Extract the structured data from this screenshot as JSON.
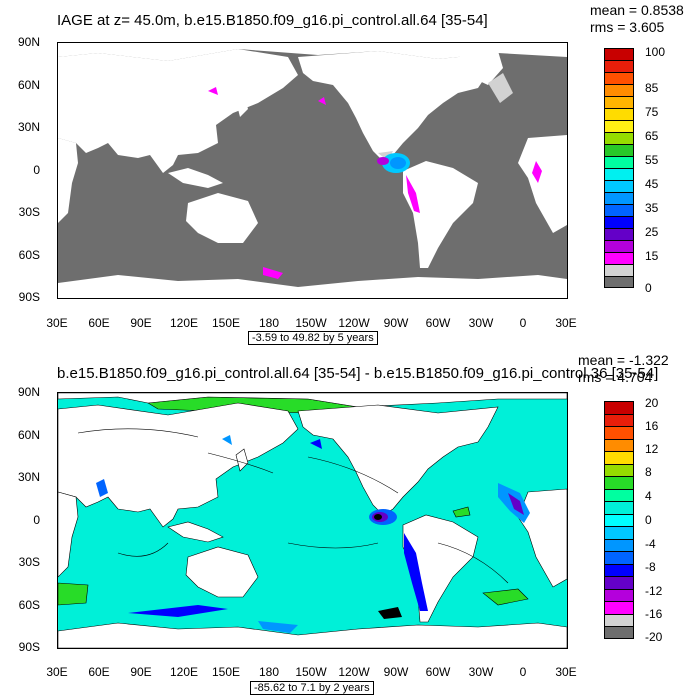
{
  "panel1": {
    "title": "IAGE at z=  45.0m, b.e15.B1850.f09_g16.pi_control.all.64 [35-54]",
    "mean": "mean = 0.8538",
    "rms": "rms = 3.605",
    "info": "-3.59 to 49.82 by 5 years",
    "ocean_color": "#6e6e6e",
    "land_color": "#ffffff",
    "colorbar_labels": [
      "100",
      "85",
      "75",
      "65",
      "55",
      "45",
      "35",
      "25",
      "15",
      "0"
    ],
    "colorbar_colors": [
      "#c80000",
      "#e81e0a",
      "#ff5000",
      "#ff8c00",
      "#ffb400",
      "#ffdc00",
      "#fff014",
      "#96dc00",
      "#28c828",
      "#00ffa0",
      "#00f0f0",
      "#00c8ff",
      "#0096ff",
      "#0064ff",
      "#0000ff",
      "#6400c8",
      "#b400dc",
      "#ff00ff",
      "#d2d2d2",
      "#6e6e6e"
    ]
  },
  "panel2": {
    "title": "b.e15.B1850.f09_g16.pi_control.all.64 [35-54] - b.e15.B1850.f09_g16.pi_control.36 [35-54]",
    "mean": "mean = -1.322",
    "rms": "rms = 4.704",
    "info": "-85.62 to 7.1 by 2 years",
    "ocean_color": "#00f0d8",
    "land_color": "#ffffff",
    "colorbar_labels": [
      "20",
      "16",
      "12",
      "8",
      "4",
      "0",
      "-4",
      "-8",
      "-12",
      "-16",
      "-20"
    ],
    "colorbar_colors": [
      "#c80000",
      "#e81e0a",
      "#ff5000",
      "#ff8c00",
      "#ffdc00",
      "#96dc00",
      "#28dc28",
      "#00ffa0",
      "#00f0d8",
      "#00ffff",
      "#00c8ff",
      "#0096ff",
      "#0064ff",
      "#0000ff",
      "#6400c8",
      "#b400dc",
      "#ff00ff",
      "#d2d2d2",
      "#6e6e6e"
    ]
  },
  "axes": {
    "yticks": [
      "90N",
      "60N",
      "30N",
      "0",
      "30S",
      "60S",
      "90S"
    ],
    "xticks": [
      "30E",
      "60E",
      "90E",
      "120E",
      "150E",
      "180",
      "150W",
      "120W",
      "90W",
      "60W",
      "30W",
      "0",
      "30E"
    ]
  }
}
